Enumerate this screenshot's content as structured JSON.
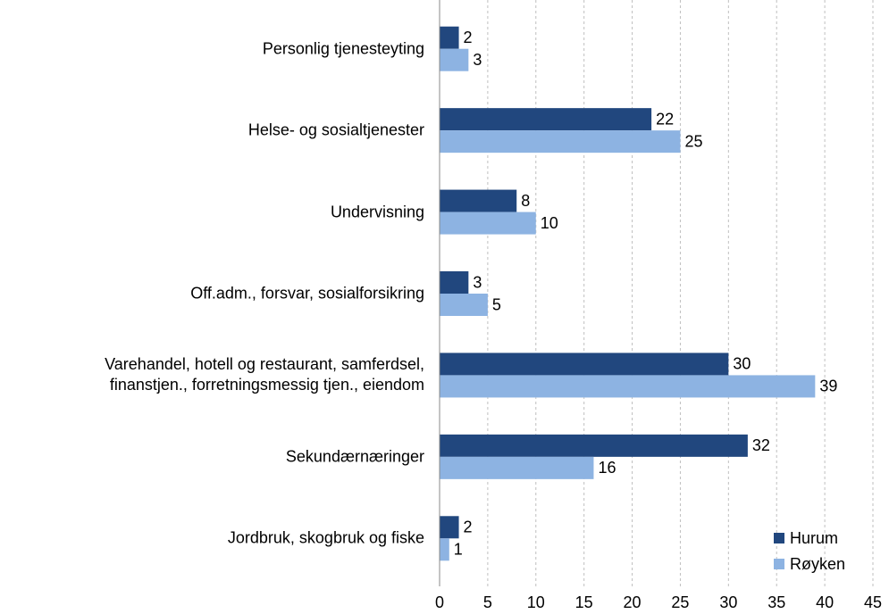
{
  "chart_data": {
    "type": "bar",
    "orientation": "horizontal",
    "categories": [
      "Personlig tjenesteyting",
      "Helse- og sosialtjenester",
      "Undervisning",
      "Off.adm., forsvar, sosialforsikring",
      "Varehandel, hotell og restaurant, samferdsel,\nfinanstjen., forretningsmessig tjen., eiendom",
      "Sekundærnæringer",
      "Jordbruk, skogbruk og fiske"
    ],
    "series": [
      {
        "name": "Hurum",
        "color": "#21477e",
        "values": [
          2,
          22,
          8,
          3,
          30,
          32,
          2
        ]
      },
      {
        "name": "Røyken",
        "color": "#8db3e2",
        "values": [
          3,
          25,
          10,
          5,
          39,
          16,
          1
        ]
      }
    ],
    "xlim": [
      0,
      45
    ],
    "xticks": [
      0,
      5,
      10,
      15,
      20,
      25,
      30,
      35,
      40,
      45
    ],
    "grid": true,
    "legend": "bottom-right"
  }
}
